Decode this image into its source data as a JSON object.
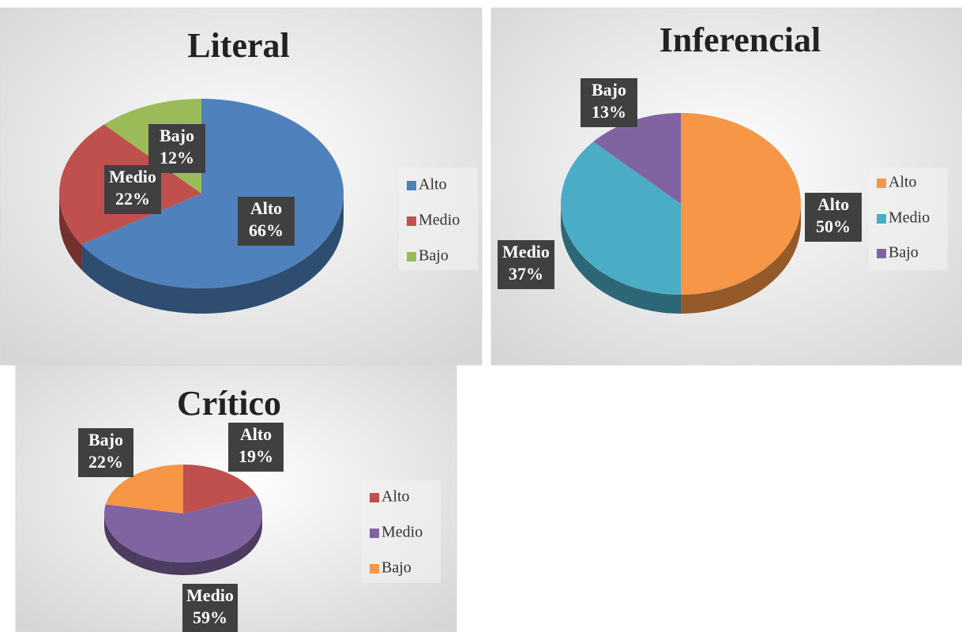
{
  "chart_data": [
    {
      "type": "pie",
      "title": "Literal",
      "categories": [
        "Alto",
        "Medio",
        "Bajo"
      ],
      "values": [
        66,
        22,
        12
      ],
      "value_labels": [
        "66%",
        "22%",
        "12%"
      ],
      "colors": [
        "#4f81bd",
        "#c0504d",
        "#9bbb59"
      ],
      "legend": "right"
    },
    {
      "type": "pie",
      "title": "Inferencial",
      "categories": [
        "Alto",
        "Medio",
        "Bajo"
      ],
      "values": [
        50,
        37,
        13
      ],
      "value_labels": [
        "50%",
        "37%",
        "13%"
      ],
      "colors": [
        "#f79646",
        "#4bacc6",
        "#8064a2"
      ],
      "legend": "right"
    },
    {
      "type": "pie",
      "title": "Crítico",
      "categories": [
        "Alto",
        "Medio",
        "Bajo"
      ],
      "values": [
        19,
        59,
        22
      ],
      "value_labels": [
        "19%",
        "59%",
        "22%"
      ],
      "colors": [
        "#c0504d",
        "#8064a2",
        "#f79646"
      ],
      "legend": "right"
    }
  ]
}
